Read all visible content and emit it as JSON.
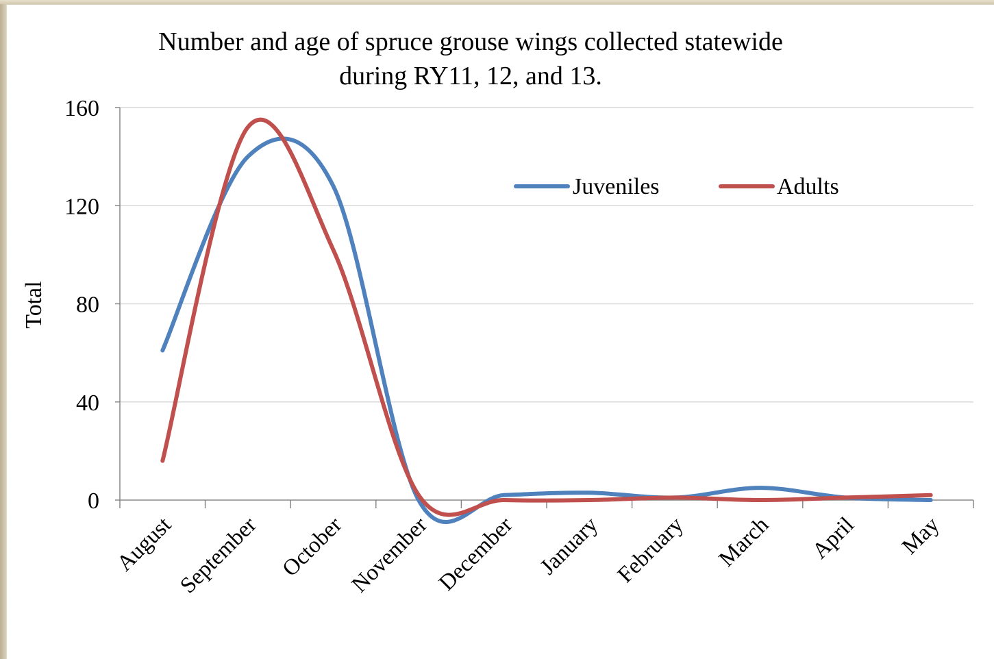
{
  "chart_data": {
    "type": "line",
    "title_lines": [
      "Number and age of spruce grouse wings collected statewide",
      "during RY11, 12, and 13."
    ],
    "xlabel": "",
    "ylabel": "Total",
    "categories": [
      "August",
      "September",
      "October",
      "November",
      "December",
      "January",
      "February",
      "March",
      "April",
      "May"
    ],
    "yticks": [
      "0",
      "40",
      "80",
      "120",
      "160"
    ],
    "ylim": [
      0,
      160
    ],
    "grid": true,
    "smooth": true,
    "legend_position": "top-right",
    "series": [
      {
        "name": "Juveniles",
        "color": "#4f81bd",
        "values": [
          61,
          140,
          128,
          0,
          2,
          3,
          1,
          5,
          1,
          0
        ]
      },
      {
        "name": "Adults",
        "color": "#c0504d",
        "values": [
          16,
          152,
          102,
          2,
          0,
          0,
          1,
          0,
          1,
          2
        ]
      }
    ]
  }
}
